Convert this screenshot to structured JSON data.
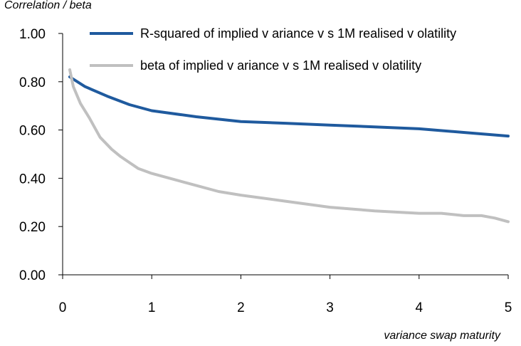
{
  "chart_data": {
    "type": "line",
    "title": "",
    "ylabel": "Correlation / beta",
    "xlabel": "variance swap maturity",
    "xlim": [
      0,
      5
    ],
    "ylim": [
      0,
      1
    ],
    "xticks": [
      "0",
      "1",
      "2",
      "3",
      "4",
      "5"
    ],
    "yticks": [
      "0.00",
      "0.20",
      "0.40",
      "0.60",
      "0.80",
      "1.00"
    ],
    "grid": false,
    "legend_position": "top",
    "series": [
      {
        "name": "R-squared of implied v ariance v s 1M realised v olatility",
        "color": "#1f5a9e",
        "x": [
          0.08,
          0.25,
          0.5,
          0.75,
          1.0,
          1.5,
          2.0,
          2.5,
          3.0,
          3.5,
          4.0,
          4.5,
          5.0
        ],
        "y": [
          0.82,
          0.78,
          0.74,
          0.705,
          0.68,
          0.655,
          0.635,
          0.628,
          0.62,
          0.613,
          0.605,
          0.59,
          0.575
        ]
      },
      {
        "name": "beta of implied v ariance v s 1M realised v olatility",
        "color": "#c0c0c0",
        "x": [
          0.08,
          0.12,
          0.2,
          0.3,
          0.42,
          0.55,
          0.65,
          0.75,
          0.85,
          1.0,
          1.25,
          1.5,
          1.75,
          2.0,
          2.5,
          3.0,
          3.5,
          4.0,
          4.25,
          4.5,
          4.7,
          4.85,
          5.0
        ],
        "y": [
          0.85,
          0.78,
          0.71,
          0.65,
          0.57,
          0.52,
          0.49,
          0.465,
          0.44,
          0.42,
          0.395,
          0.37,
          0.345,
          0.33,
          0.305,
          0.28,
          0.265,
          0.255,
          0.255,
          0.245,
          0.245,
          0.235,
          0.22
        ]
      }
    ]
  }
}
